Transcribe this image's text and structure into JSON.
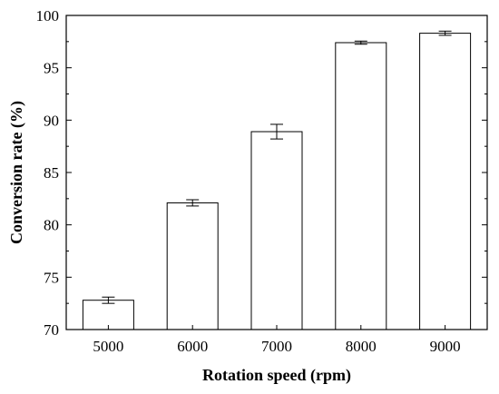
{
  "chart_data": {
    "type": "bar",
    "categories": [
      "5000",
      "6000",
      "7000",
      "8000",
      "9000"
    ],
    "values": [
      72.8,
      82.1,
      88.9,
      97.4,
      98.3
    ],
    "errors": [
      0.3,
      0.3,
      0.7,
      0.15,
      0.2
    ],
    "xlabel": "Rotation speed (rpm)",
    "ylabel": "Conversion rate (%)",
    "ylim": [
      70,
      100
    ],
    "yticks": [
      70,
      75,
      80,
      85,
      90,
      95,
      100
    ],
    "grid": false,
    "bar_fill": "#ffffff",
    "bar_stroke": "#000000"
  }
}
